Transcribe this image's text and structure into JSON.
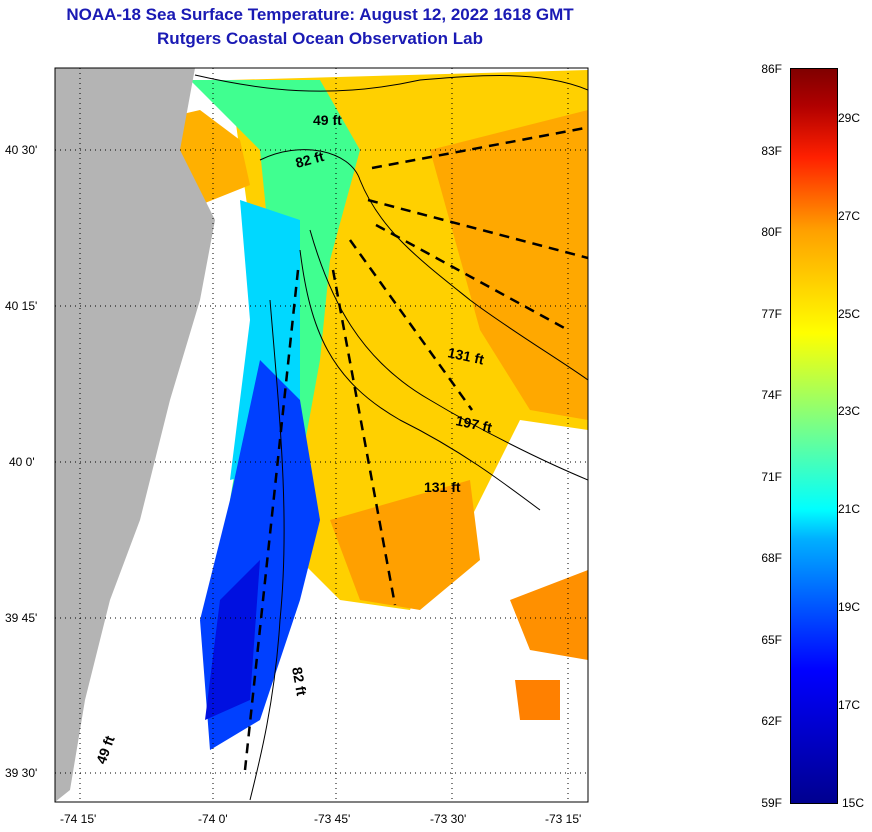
{
  "title": {
    "line1": "NOAA-18 Sea Surface Temperature:  August 12, 2022 1618 GMT",
    "line2": "Rutgers Coastal Ocean Observation Lab"
  },
  "y_axis_labels": [
    "40 30'",
    "40 15'",
    "40 0'",
    "39 45'",
    "39 30'"
  ],
  "x_axis_labels": [
    "-74 15'",
    "-74 0'",
    "-73 45'",
    "-73 30'",
    "-73 15'"
  ],
  "contour_labels": [
    "49 ft",
    "82 ft",
    "131 ft",
    "197 ft",
    "131 ft",
    "82 ft",
    "49 ft"
  ],
  "colorbar": {
    "fahrenheit": [
      "86F",
      "83F",
      "80F",
      "77F",
      "74F",
      "71F",
      "68F",
      "65F",
      "62F",
      "59F"
    ],
    "celsius": [
      "29C",
      "27C",
      "25C",
      "23C",
      "21C",
      "19C",
      "17C",
      "15C"
    ]
  },
  "colors": {
    "title": "#1a1ab4",
    "land": "#b4b4b4",
    "cold": "#0000ff",
    "warm": "#ffa000"
  }
}
